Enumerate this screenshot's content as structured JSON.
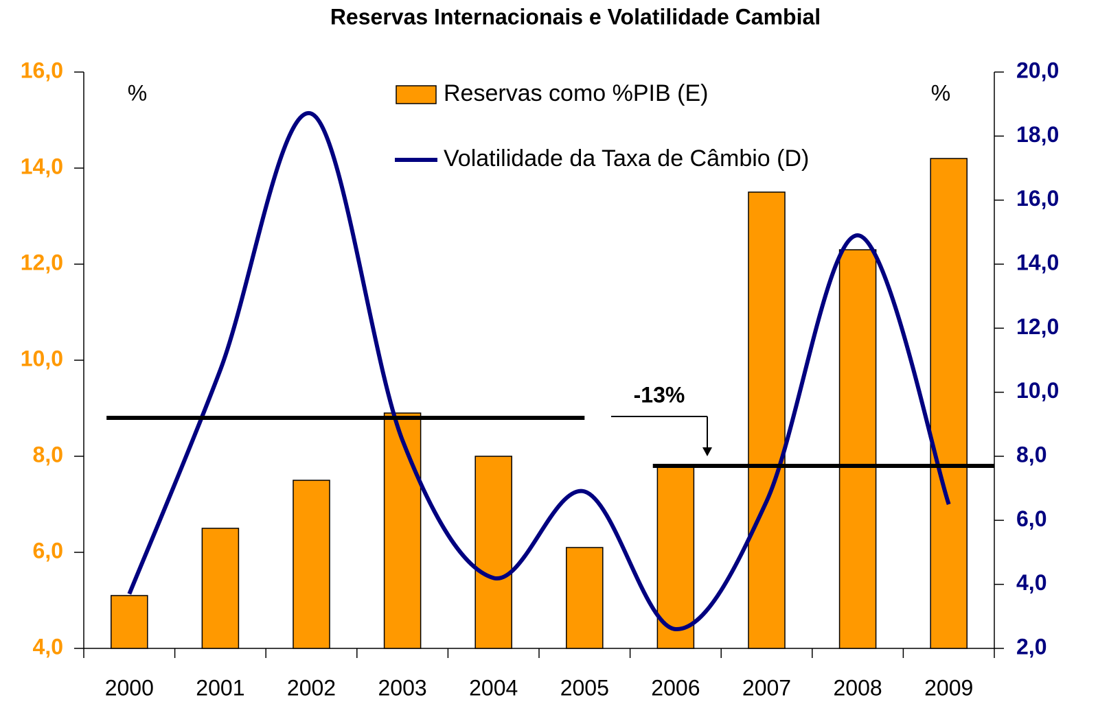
{
  "chart_data": {
    "type": "bar_line",
    "title": "Reservas Internacionais e Volatilidade Cambial",
    "categories": [
      "2000",
      "2001",
      "2002",
      "2003",
      "2004",
      "2005",
      "2006",
      "2007",
      "2008",
      "2009"
    ],
    "series": [
      {
        "name": "Reservas como %PIB (E)",
        "type": "bar",
        "color": "#FF9900",
        "values": [
          5.1,
          6.5,
          7.5,
          8.9,
          8.0,
          6.1,
          7.8,
          13.5,
          12.3,
          14.2
        ]
      },
      {
        "name": "Volatilidade da Taxa de Câmbio (D)",
        "type": "line",
        "axis": "y2",
        "color": "#000080",
        "values": [
          3.7,
          10.7,
          18.7,
          8.5,
          4.2,
          6.9,
          2.6,
          6.6,
          14.9,
          6.5
        ]
      }
    ],
    "ylim": [
      4,
      16
    ],
    "yticks": [
      {
        "value": 4,
        "label": "4,0"
      },
      {
        "value": 6,
        "label": "6,0"
      },
      {
        "value": 8,
        "label": "8,0"
      },
      {
        "value": 10,
        "label": "10,0"
      },
      {
        "value": 12,
        "label": "12,0"
      },
      {
        "value": 14,
        "label": "14,0"
      },
      {
        "value": 16,
        "label": "16,0"
      }
    ],
    "y2lim": [
      2,
      20
    ],
    "y2ticks": [
      {
        "value": 2,
        "label": "2,0"
      },
      {
        "value": 4,
        "label": "4,0"
      },
      {
        "value": 6,
        "label": "6,0"
      },
      {
        "value": 8,
        "label": "8,0"
      },
      {
        "value": 10,
        "label": "10,0"
      },
      {
        "value": 12,
        "label": "12,0"
      },
      {
        "value": 14,
        "label": "14,0"
      },
      {
        "value": 16,
        "label": "16,0"
      },
      {
        "value": 18,
        "label": "18,0"
      },
      {
        "value": 20,
        "label": "20,0"
      }
    ],
    "y_unit_label": "%",
    "y2_unit_label": "%",
    "y_tick_color": "#FF9900",
    "y2_tick_color": "#000080",
    "reference_lines": [
      {
        "value": 8.8,
        "from": "2000",
        "to": "2005"
      },
      {
        "value": 7.8,
        "from": "2006",
        "to": "2009"
      }
    ],
    "annotation": "-13%",
    "legend": "top"
  }
}
